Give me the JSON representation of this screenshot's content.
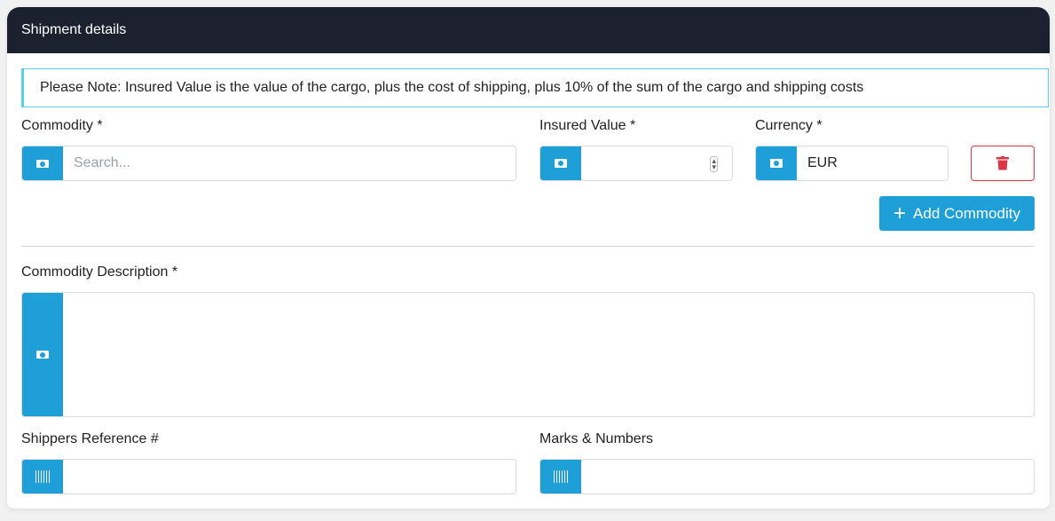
{
  "header": {
    "title": "Shipment details"
  },
  "note": "Please Note: Insured Value is the value of the cargo, plus the cost of shipping, plus 10% of the sum of the cargo and shipping costs",
  "commodity": {
    "label": "Commodity *",
    "placeholder": "Search...",
    "icon": "box-icon"
  },
  "insured_value": {
    "label": "Insured Value *",
    "value": "",
    "icon": "money-icon"
  },
  "currency": {
    "label": "Currency *",
    "value": "EUR",
    "icon": "money-icon"
  },
  "delete_button": {
    "icon": "trash-icon",
    "color": "#dc3545"
  },
  "add_commodity": {
    "label": "Add Commodity",
    "icon": "plus-icon"
  },
  "description": {
    "label": "Commodity Description *",
    "value": "",
    "icon": "box-icon"
  },
  "shippers_reference": {
    "label": "Shippers Reference #",
    "value": "",
    "icon": "barcode-icon"
  },
  "marks_numbers": {
    "label": "Marks & Numbers",
    "value": "",
    "icon": "barcode-icon"
  },
  "colors": {
    "header": "#1c2130",
    "accent": "#1f9fd8",
    "note_border": "#5bd0e4",
    "danger": "#dc3545"
  }
}
